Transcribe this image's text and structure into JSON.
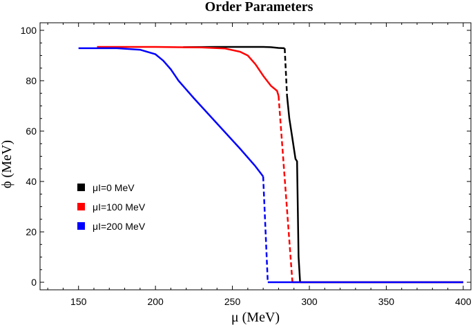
{
  "chart_data": {
    "type": "line",
    "title": "Order Parameters",
    "xlabel": "μ (MeV)",
    "ylabel": "ϕ (MeV)",
    "xlim": [
      125,
      405
    ],
    "ylim": [
      -3,
      103
    ],
    "xticks": [
      150,
      200,
      250,
      300,
      350,
      400
    ],
    "yticks": [
      0,
      20,
      40,
      60,
      80,
      100
    ],
    "grid": false,
    "legend_position": "left-middle",
    "series": [
      {
        "name": "μI=0 MeV",
        "color": "#000000",
        "segments": [
          {
            "style": "solid",
            "x": [
              218,
              240,
              260,
              270,
              275,
              280,
              284
            ],
            "y": [
              93.3,
              93.4,
              93.4,
              93.4,
              93.3,
              93.0,
              92.9
            ]
          },
          {
            "style": "dashed",
            "x": [
              284,
              285.5
            ],
            "y": [
              92.9,
              74.0
            ]
          },
          {
            "style": "solid",
            "x": [
              285.5,
              287,
              289,
              291,
              292,
              293,
              294
            ],
            "y": [
              74.0,
              65.0,
              57.0,
              49.0,
              48.0,
              10.0,
              0.0
            ]
          },
          {
            "style": "solid",
            "x": [
              294,
              400
            ],
            "y": [
              0.0,
              0.0
            ]
          }
        ]
      },
      {
        "name": "μI=100 MeV",
        "color": "#ff0000",
        "segments": [
          {
            "style": "solid",
            "x": [
              162,
              200,
              230,
              245,
              255,
              260,
              265,
              270,
              275,
              279,
              280
            ],
            "y": [
              93.4,
              93.4,
              93.2,
              92.8,
              91.5,
              90.0,
              86.5,
              82.0,
              78.0,
              76.0,
              74.0
            ]
          },
          {
            "style": "dashed",
            "x": [
              280,
              289
            ],
            "y": [
              74.0,
              0.0
            ]
          },
          {
            "style": "solid",
            "x": [
              289,
              400
            ],
            "y": [
              0.0,
              0.0
            ]
          }
        ]
      },
      {
        "name": "μI=200 MeV",
        "color": "#0000ff",
        "segments": [
          {
            "style": "solid",
            "x": [
              150,
              175,
              190,
              200,
              205,
              210,
              215,
              225,
              240,
              255,
              265,
              270
            ],
            "y": [
              92.9,
              92.9,
              92.3,
              90.5,
              88.0,
              84.5,
              80.0,
              73.0,
              63.0,
              53.0,
              46.0,
              42.0
            ]
          },
          {
            "style": "dashed",
            "x": [
              270,
              273
            ],
            "y": [
              42.0,
              0.0
            ]
          },
          {
            "style": "solid",
            "x": [
              273,
              400
            ],
            "y": [
              0.0,
              0.0
            ]
          }
        ]
      }
    ]
  }
}
